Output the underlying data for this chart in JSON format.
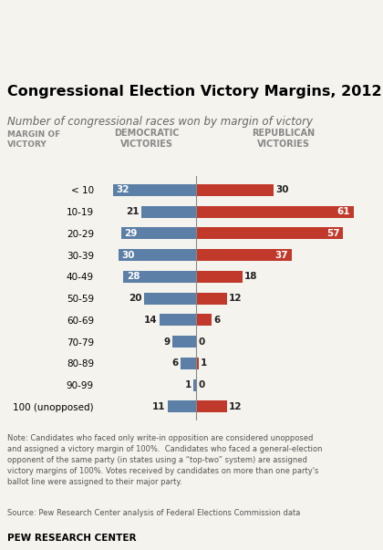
{
  "title": "Congressional Election Victory Margins, 2012",
  "subtitle": "Number of congressional races won by margin of victory",
  "col_header_dem": "DEMOCRATIC\nVICTORIES",
  "col_header_rep": "REPUBLICAN\nVICTORIES",
  "row_header": "MARGIN OF\nVICTORY",
  "categories": [
    "< 10",
    "10-19",
    "20-29",
    "30-39",
    "40-49",
    "50-59",
    "60-69",
    "70-79",
    "80-89",
    "90-99",
    "100 (unopposed)"
  ],
  "dem_values": [
    32,
    21,
    29,
    30,
    28,
    20,
    14,
    9,
    6,
    1,
    11
  ],
  "rep_values": [
    30,
    61,
    57,
    37,
    18,
    12,
    6,
    0,
    1,
    0,
    12
  ],
  "dem_color": "#5b7fa6",
  "rep_color": "#c0392b",
  "background_color": "#f5f3ee",
  "note_text": "Note: Candidates who faced only write-in opposition are considered unopposed\nand assigned a victory margin of 100%.  Candidates who faced a general-election\nopponent of the same party (in states using a “top-two” system) are assigned\nvictory margins of 100%. Votes received by candidates on more than one party's\nballot line were assigned to their major party.",
  "source_text": "Source: Pew Research Center analysis of Federal Elections Commission data",
  "brand_text": "PEW RESEARCH CENTER",
  "title_fontsize": 11.5,
  "subtitle_fontsize": 8.5,
  "label_fontsize": 7.5,
  "bar_height": 0.55,
  "xlim_left": -38,
  "xlim_right": 68,
  "center_line_color": "#888888",
  "header_color": "#888888",
  "label_color_outside": "#222222",
  "label_color_inside": "#ffffff"
}
